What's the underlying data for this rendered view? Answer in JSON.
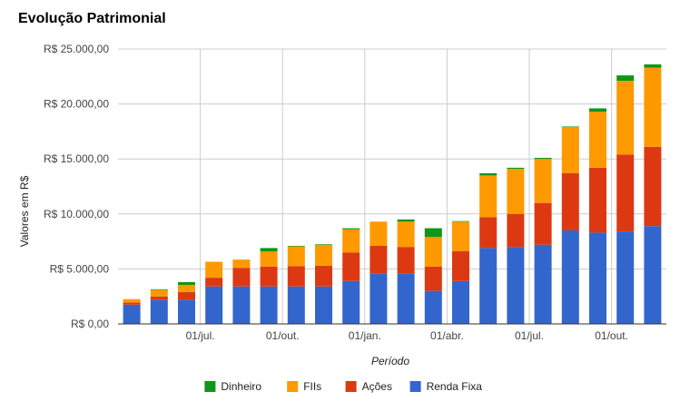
{
  "chart_data": {
    "type": "bar",
    "stacked": true,
    "title": "Evolução Patrimonial",
    "xlabel": "Período",
    "ylabel": "Valores em R$",
    "ylim": [
      0,
      25000
    ],
    "yticks": [
      0,
      5000,
      10000,
      15000,
      20000,
      25000
    ],
    "ytick_labels": [
      "R$ 0,00",
      "R$ 5.000,00",
      "R$ 10.000,00",
      "R$ 15.000,00",
      "R$ 20.000,00",
      "R$ 25.000,00"
    ],
    "xtick_labels": [
      {
        "label": "01/jul.",
        "after_index": 2
      },
      {
        "label": "01/out.",
        "after_index": 5
      },
      {
        "label": "01/jan.",
        "after_index": 8
      },
      {
        "label": "01/abr.",
        "after_index": 11
      },
      {
        "label": "01/jul.",
        "after_index": 14
      },
      {
        "label": "01/out.",
        "after_index": 17
      }
    ],
    "grid": true,
    "legend_position": "bottom",
    "series": [
      {
        "name": "Renda Fixa",
        "color": "#3366cc",
        "values": [
          1750,
          2200,
          2200,
          3400,
          3400,
          3400,
          3400,
          3400,
          3900,
          4600,
          4600,
          3000,
          3900,
          6900,
          7000,
          7200,
          8500,
          8300,
          8400,
          8900
        ]
      },
      {
        "name": "Ações",
        "color": "#dc3912",
        "values": [
          200,
          300,
          700,
          800,
          1700,
          1800,
          1850,
          1900,
          2600,
          2500,
          2400,
          2200,
          2700,
          2800,
          3000,
          3800,
          5200,
          5900,
          7000,
          7200
        ]
      },
      {
        "name": "FIIs",
        "color": "#ff9900",
        "values": [
          300,
          600,
          650,
          1450,
          750,
          1400,
          1800,
          1900,
          2100,
          2200,
          2300,
          2700,
          2700,
          3800,
          4100,
          4000,
          4200,
          5100,
          6700,
          7200
        ]
      },
      {
        "name": "Dinheiro",
        "color": "#109618",
        "values": [
          0,
          50,
          250,
          0,
          0,
          300,
          50,
          50,
          100,
          0,
          200,
          800,
          50,
          200,
          100,
          100,
          50,
          300,
          500,
          300
        ]
      }
    ],
    "legend_order": [
      "Dinheiro",
      "FIIs",
      "Ações",
      "Renda Fixa"
    ]
  }
}
